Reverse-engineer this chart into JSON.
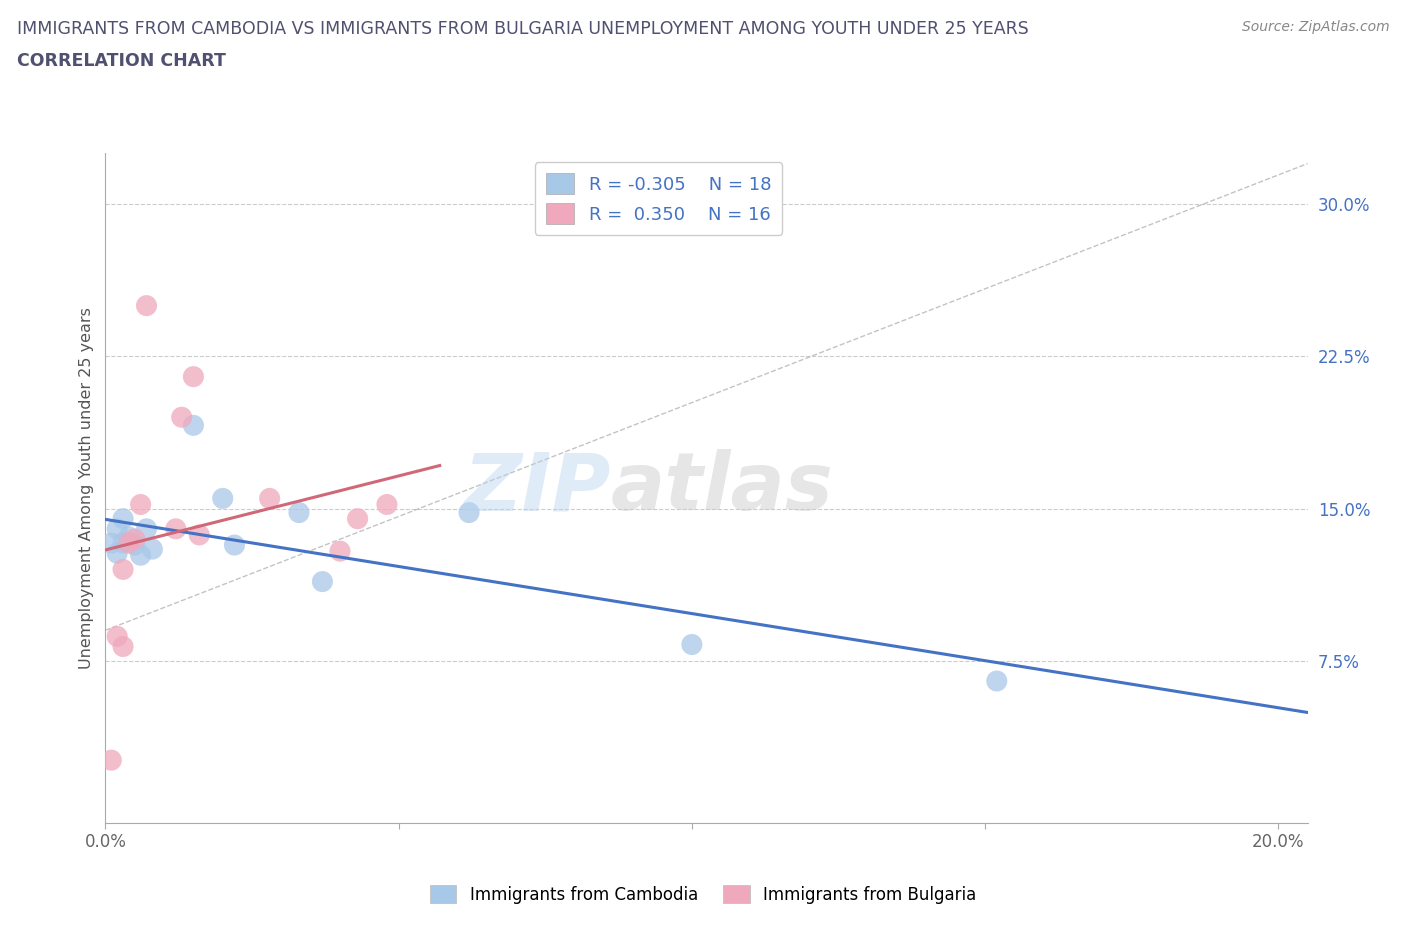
{
  "title_line1": "IMMIGRANTS FROM CAMBODIA VS IMMIGRANTS FROM BULGARIA UNEMPLOYMENT AMONG YOUTH UNDER 25 YEARS",
  "title_line2": "CORRELATION CHART",
  "source_text": "Source: ZipAtlas.com",
  "ylabel": "Unemployment Among Youth under 25 years",
  "watermark_zip": "ZIP",
  "watermark_atlas": "atlas",
  "legend_label_1": "Immigrants from Cambodia",
  "legend_label_2": "Immigrants from Bulgaria",
  "R1": -0.305,
  "N1": 18,
  "R2": 0.35,
  "N2": 16,
  "color_cambodia": "#a8c8e8",
  "color_bulgaria": "#f0a8bc",
  "color_line_cambodia": "#4472C4",
  "color_line_bulgaria": "#d06878",
  "color_title": "#505070",
  "color_ytick": "#4472C4",
  "xlim": [
    0.0,
    0.205
  ],
  "ylim": [
    -0.005,
    0.325
  ],
  "plot_ylim": [
    0.0,
    0.32
  ],
  "xticks": [
    0.0,
    0.05,
    0.1,
    0.15,
    0.2
  ],
  "yticks": [
    0.075,
    0.15,
    0.225,
    0.3
  ],
  "xtick_labels": [
    "0.0%",
    "",
    "",
    "",
    "20.0%"
  ],
  "ytick_labels": [
    "7.5%",
    "15.0%",
    "22.5%",
    "30.0%"
  ],
  "scatter_cambodia_x": [
    0.001,
    0.002,
    0.002,
    0.003,
    0.003,
    0.004,
    0.005,
    0.006,
    0.007,
    0.008,
    0.015,
    0.02,
    0.022,
    0.033,
    0.037,
    0.062,
    0.1,
    0.152
  ],
  "scatter_cambodia_y": [
    0.133,
    0.128,
    0.14,
    0.133,
    0.145,
    0.136,
    0.132,
    0.127,
    0.14,
    0.13,
    0.191,
    0.155,
    0.132,
    0.148,
    0.114,
    0.148,
    0.083,
    0.065
  ],
  "scatter_bulgaria_x": [
    0.001,
    0.002,
    0.003,
    0.003,
    0.004,
    0.005,
    0.006,
    0.007,
    0.012,
    0.013,
    0.015,
    0.016,
    0.028,
    0.04,
    0.043,
    0.048
  ],
  "scatter_bulgaria_y": [
    0.026,
    0.087,
    0.082,
    0.12,
    0.133,
    0.135,
    0.152,
    0.25,
    0.14,
    0.195,
    0.215,
    0.137,
    0.155,
    0.129,
    0.145,
    0.152
  ],
  "line_cambodia_x0": 0.0,
  "line_cambodia_x1": 0.205,
  "line_bulgaria_x0": 0.0,
  "line_bulgaria_x1": 0.057,
  "dash_line_x": [
    0.0,
    0.205
  ],
  "dash_line_y": [
    0.09,
    0.32
  ]
}
